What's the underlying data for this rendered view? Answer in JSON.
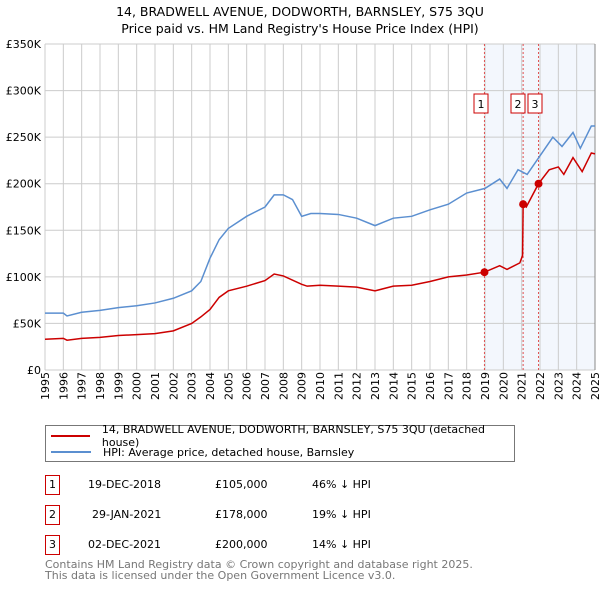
{
  "chart_data": {
    "type": "line",
    "title": "14, BRADWELL AVENUE, DODWORTH, BARNSLEY, S75 3QU",
    "subtitle": "Price paid vs. HM Land Registry's House Price Index (HPI)",
    "xlim": [
      1995,
      2025
    ],
    "ylim": [
      0,
      350000
    ],
    "y_ticks": [
      {
        "v": 0,
        "label": "£0"
      },
      {
        "v": 50000,
        "label": "£50K"
      },
      {
        "v": 100000,
        "label": "£100K"
      },
      {
        "v": 150000,
        "label": "£150K"
      },
      {
        "v": 200000,
        "label": "£200K"
      },
      {
        "v": 250000,
        "label": "£250K"
      },
      {
        "v": 300000,
        "label": "£300K"
      },
      {
        "v": 350000,
        "label": "£350K"
      }
    ],
    "x_ticks": [
      "1995",
      "1996",
      "1997",
      "1998",
      "1999",
      "2000",
      "2001",
      "2002",
      "2003",
      "2004",
      "2005",
      "2006",
      "2007",
      "2008",
      "2009",
      "2010",
      "2011",
      "2012",
      "2013",
      "2014",
      "2015",
      "2016",
      "2017",
      "2018",
      "2019",
      "2020",
      "2021",
      "2022",
      "2023",
      "2024",
      "2025"
    ],
    "grid": true,
    "series": [
      {
        "name": "14, BRADWELL AVENUE, DODWORTH, BARNSLEY, S75 3QU (detached house)",
        "color": "#cc0000",
        "x": [
          1995,
          1996,
          1996.2,
          1997,
          1998,
          1999,
          2000,
          2001,
          2002,
          2003,
          2003.5,
          2004,
          2004.5,
          2005,
          2006,
          2007,
          2007.5,
          2008,
          2009,
          2009.3,
          2010,
          2011,
          2012,
          2013,
          2014,
          2015,
          2016,
          2017,
          2018,
          2018.97,
          2019.8,
          2020.2,
          2020.9,
          2021.05,
          2021.08,
          2021.25,
          2021.92,
          2022.5,
          2023,
          2023.3,
          2023.8,
          2024.3,
          2024.8,
          2025
        ],
        "y": [
          33000,
          34000,
          32000,
          34000,
          35000,
          37000,
          38000,
          39000,
          42000,
          50000,
          57000,
          65000,
          78000,
          85000,
          90000,
          96000,
          103000,
          101000,
          92000,
          90000,
          91000,
          90000,
          89000,
          85000,
          90000,
          91000,
          95000,
          100000,
          102000,
          105000,
          112000,
          108000,
          115000,
          123000,
          178000,
          175000,
          200000,
          215000,
          218000,
          210000,
          228000,
          213000,
          233000,
          232000
        ]
      },
      {
        "name": "HPI: Average price, detached house, Barnsley",
        "color": "#5b8fd0",
        "x": [
          1995,
          1996,
          1996.2,
          1997,
          1998,
          1999,
          2000,
          2001,
          2002,
          2003,
          2003.5,
          2004,
          2004.5,
          2005,
          2006,
          2007,
          2007.5,
          2008,
          2008.5,
          2009,
          2009.5,
          2010,
          2011,
          2012,
          2013,
          2014,
          2015,
          2016,
          2017,
          2018,
          2019,
          2019.8,
          2020.2,
          2020.8,
          2021.3,
          2022,
          2022.7,
          2023.2,
          2023.8,
          2024.2,
          2024.8,
          2025
        ],
        "y": [
          61000,
          61000,
          58000,
          62000,
          64000,
          67000,
          69000,
          72000,
          77000,
          85000,
          95000,
          120000,
          140000,
          152000,
          165000,
          175000,
          188000,
          188000,
          183000,
          165000,
          168000,
          168000,
          167000,
          163000,
          155000,
          163000,
          165000,
          172000,
          178000,
          190000,
          195000,
          205000,
          195000,
          215000,
          210000,
          230000,
          250000,
          240000,
          255000,
          238000,
          262000,
          262000
        ]
      }
    ],
    "sales": [
      {
        "id": "1",
        "x": 2018.97,
        "y": 105000
      },
      {
        "id": "2",
        "x": 2021.08,
        "y": 178000
      },
      {
        "id": "3",
        "x": 2021.92,
        "y": 200000
      }
    ],
    "shaded_from": 2018.97,
    "legend": {
      "placement": "below",
      "entries": [
        "14, BRADWELL AVENUE, DODWORTH, BARNSLEY, S75 3QU (detached house)",
        "HPI: Average price, detached house, Barnsley"
      ]
    }
  },
  "table": [
    {
      "id": "1",
      "date": "19-DEC-2018",
      "price": "£105,000",
      "hpi": "46% ↓ HPI"
    },
    {
      "id": "2",
      "date": "29-JAN-2021",
      "price": "£178,000",
      "hpi": "19% ↓ HPI"
    },
    {
      "id": "3",
      "date": "02-DEC-2021",
      "price": "£200,000",
      "hpi": "14% ↓ HPI"
    }
  ],
  "footer": {
    "line1": "Contains HM Land Registry data © Crown copyright and database right 2025.",
    "line2": "This data is licensed under the Open Government Licence v3.0."
  }
}
